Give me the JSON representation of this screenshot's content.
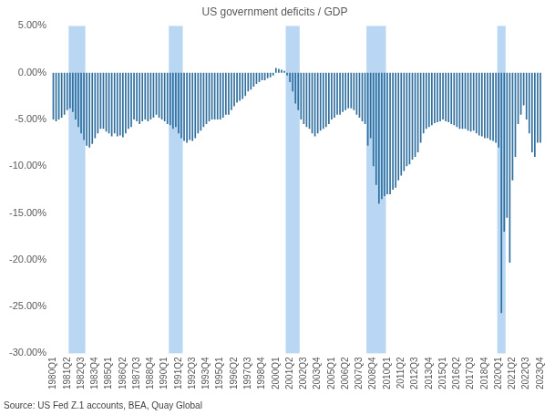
{
  "chart_data": {
    "type": "bar",
    "title": "US government deficits / GDP",
    "source": "Source: US Fed Z.1 accounts, BEA, Quay Global",
    "categories": [
      "1980Q1",
      null,
      null,
      null,
      null,
      "1981Q2",
      null,
      null,
      null,
      null,
      "1982Q3",
      null,
      null,
      null,
      null,
      "1983Q4",
      null,
      null,
      null,
      null,
      "1985Q1",
      null,
      null,
      null,
      null,
      "1986Q2",
      null,
      null,
      null,
      null,
      "1987Q3",
      null,
      null,
      null,
      null,
      "1988Q4",
      null,
      null,
      null,
      null,
      "1990Q1",
      null,
      null,
      null,
      null,
      "1991Q2",
      null,
      null,
      null,
      null,
      "1992Q3",
      null,
      null,
      null,
      null,
      "1993Q4",
      null,
      null,
      null,
      null,
      "1995Q1",
      null,
      null,
      null,
      null,
      "1996Q2",
      null,
      null,
      null,
      null,
      "1997Q3",
      null,
      null,
      null,
      null,
      "1998Q4",
      null,
      null,
      null,
      null,
      "2000Q1",
      null,
      null,
      null,
      null,
      "2001Q2",
      null,
      null,
      null,
      null,
      "2002Q3",
      null,
      null,
      null,
      null,
      "2003Q4",
      null,
      null,
      null,
      null,
      "2005Q1",
      null,
      null,
      null,
      null,
      "2006Q2",
      null,
      null,
      null,
      null,
      "2007Q3",
      null,
      null,
      null,
      null,
      "2008Q4",
      null,
      null,
      null,
      null,
      "2010Q1",
      null,
      null,
      null,
      null,
      "2011Q2",
      null,
      null,
      null,
      null,
      "2012Q3",
      null,
      null,
      null,
      null,
      "2013Q4",
      null,
      null,
      null,
      null,
      "2015Q1",
      null,
      null,
      null,
      null,
      "2016Q2",
      null,
      null,
      null,
      null,
      "2017Q3",
      null,
      null,
      null,
      null,
      "2018Q4",
      null,
      null,
      null,
      null,
      "2020Q1",
      null,
      null,
      null,
      null,
      "2021Q2",
      null,
      null,
      null,
      null,
      "2022Q3",
      null,
      null,
      null,
      null,
      "2023Q4"
    ],
    "values": [
      -5.0,
      -5.2,
      -5.0,
      -4.8,
      -4.5,
      -4.0,
      -3.8,
      -4.2,
      -5.0,
      -5.8,
      -6.5,
      -7.2,
      -7.8,
      -8.0,
      -7.6,
      -7.0,
      -6.5,
      -6.0,
      -6.0,
      -6.3,
      -6.5,
      -6.8,
      -6.5,
      -6.8,
      -6.7,
      -6.9,
      -6.5,
      -6.0,
      -5.8,
      -5.0,
      -5.2,
      -5.5,
      -5.2,
      -5.0,
      -5.2,
      -5.0,
      -4.8,
      -4.5,
      -4.8,
      -5.0,
      -5.2,
      -5.5,
      -5.6,
      -6.0,
      -5.8,
      -6.5,
      -7.0,
      -7.3,
      -7.5,
      -7.2,
      -7.3,
      -7.0,
      -6.5,
      -6.2,
      -5.8,
      -5.5,
      -5.2,
      -5.0,
      -5.0,
      -5.0,
      -5.0,
      -4.8,
      -4.5,
      -4.5,
      -4.0,
      -3.6,
      -3.2,
      -3.0,
      -2.8,
      -2.5,
      -2.0,
      -1.8,
      -1.5,
      -1.2,
      -1.0,
      -0.8,
      -0.8,
      -0.6,
      -0.5,
      -0.3,
      0.5,
      0.4,
      0.3,
      0.2,
      -0.3,
      -1.0,
      -2.0,
      -3.3,
      -4.0,
      -5.0,
      -5.5,
      -5.8,
      -6.0,
      -6.5,
      -6.8,
      -6.5,
      -6.2,
      -6.0,
      -5.8,
      -5.5,
      -5.0,
      -4.8,
      -4.5,
      -4.5,
      -4.2,
      -4.0,
      -3.8,
      -3.8,
      -4.0,
      -4.5,
      -4.8,
      -5.2,
      -5.5,
      -7.8,
      -7.0,
      -10.0,
      -12.0,
      -14.0,
      -13.5,
      -13.2,
      -13.0,
      -13.0,
      -12.5,
      -12.3,
      -11.5,
      -11.0,
      -10.5,
      -10.0,
      -9.8,
      -9.3,
      -9.0,
      -8.5,
      -7.5,
      -6.5,
      -6.0,
      -5.8,
      -5.6,
      -5.4,
      -5.3,
      -5.2,
      -5.0,
      -5.2,
      -5.3,
      -5.5,
      -5.6,
      -5.8,
      -6.0,
      -6.0,
      -6.0,
      -6.2,
      -6.3,
      -6.2,
      -6.5,
      -6.7,
      -6.8,
      -7.0,
      -7.0,
      -7.2,
      -7.3,
      -7.5,
      -8.0,
      -25.7,
      -17.0,
      -15.5,
      -20.3,
      -11.5,
      -9.0,
      -5.5,
      -4.5,
      -3.5,
      -5.0,
      -6.5,
      -8.5,
      -9.0,
      -7.5,
      -7.5
    ],
    "color": "#2f6f9f",
    "shaded_periods": [
      [
        6,
        11
      ],
      [
        42,
        46
      ],
      [
        84,
        88
      ],
      [
        113,
        119
      ],
      [
        160,
        162
      ]
    ],
    "shaded_color": "#b9d7f3",
    "ylim": [
      -30,
      5
    ],
    "yticks": [
      {
        "value": 5,
        "label": "5.00%"
      },
      {
        "value": 0,
        "label": "0.00%"
      },
      {
        "value": -5,
        "label": "-5.00%"
      },
      {
        "value": -10,
        "label": "-10.00%"
      },
      {
        "value": -15,
        "label": "-15.00%"
      },
      {
        "value": -20,
        "label": "-20.00%"
      },
      {
        "value": -25,
        "label": "-25.00%"
      },
      {
        "value": -30,
        "label": "-30.00%"
      }
    ],
    "grid": false
  }
}
